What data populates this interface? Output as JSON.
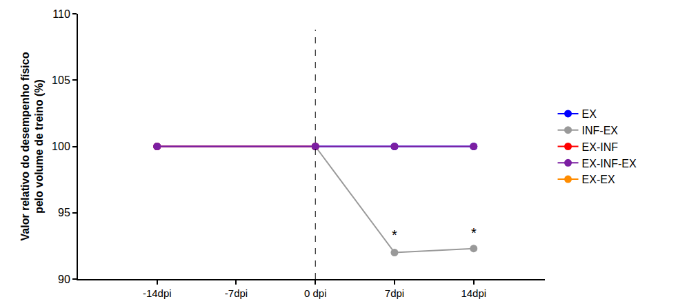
{
  "chart_data": {
    "type": "line",
    "y_label": "Valor relativo do desempenho físico\npelo volume de treino (%)",
    "categories": [
      "-14dpi",
      "-7dpi",
      "0 dpi",
      "7dpi",
      "14dpi"
    ],
    "series": [
      {
        "name": "EX",
        "color": "#0000ff",
        "marker": "circle",
        "values": [
          100,
          null,
          100,
          100,
          100
        ]
      },
      {
        "name": "INF-EX",
        "color": "#999999",
        "marker": "circle",
        "values": [
          null,
          null,
          100,
          92,
          92.3
        ]
      },
      {
        "name": "EX-INF",
        "color": "#ff0000",
        "marker": "circle",
        "values": [
          100,
          null,
          100,
          null,
          null
        ]
      },
      {
        "name": "EX-INF-EX",
        "color": "#7b1fa2",
        "marker": "circle",
        "values": [
          100,
          null,
          100,
          100,
          100
        ]
      },
      {
        "name": "EX-EX",
        "color": "#ff8c00",
        "marker": "circle",
        "values": [
          null,
          null,
          null,
          null,
          null
        ]
      }
    ],
    "ylim": [
      90,
      110
    ],
    "yticks": [
      90,
      95,
      100,
      105,
      110
    ],
    "grid": false,
    "legend": "right",
    "annotations": [
      {
        "x": "7dpi",
        "y": 93.3,
        "text": "*"
      },
      {
        "x": "14dpi",
        "y": 93.5,
        "text": "*"
      }
    ],
    "vline": {
      "x": "0 dpi",
      "line_style": "dashed"
    }
  }
}
